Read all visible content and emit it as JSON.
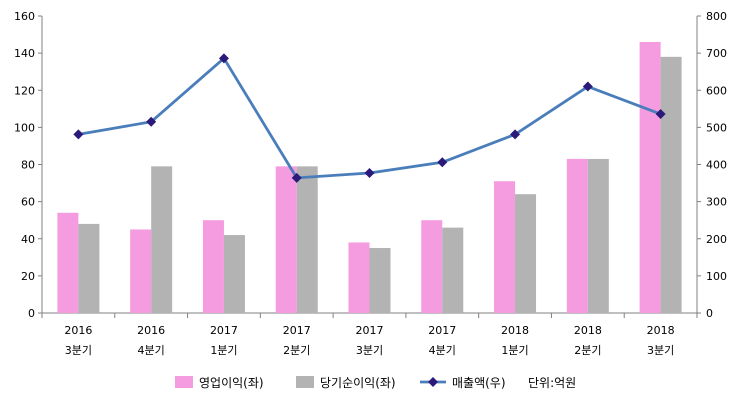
{
  "chart_data": {
    "type": "bar",
    "categories": [
      [
        "2016",
        "3분기"
      ],
      [
        "2016",
        "4분기"
      ],
      [
        "2017",
        "1분기"
      ],
      [
        "2017",
        "2분기"
      ],
      [
        "2017",
        "3분기"
      ],
      [
        "2017",
        "4분기"
      ],
      [
        "2018",
        "1분기"
      ],
      [
        "2018",
        "2분기"
      ],
      [
        "2018",
        "3분기"
      ]
    ],
    "series": [
      {
        "name": "영업이익(좌)",
        "type": "bar",
        "axis": "left",
        "color": "#f59be0",
        "values": [
          54,
          45,
          50,
          79,
          38,
          50,
          71,
          83,
          146
        ]
      },
      {
        "name": "당기순이익(좌)",
        "type": "bar",
        "axis": "left",
        "color": "#b3b3b3",
        "values": [
          48,
          79,
          42,
          79,
          35,
          46,
          64,
          83,
          138
        ]
      },
      {
        "name": "매출액(우)",
        "type": "line",
        "axis": "right",
        "color": "#4a7ebb",
        "marker_color": "#2b1a7a",
        "values": [
          481,
          515,
          686,
          364,
          377,
          406,
          481,
          610,
          536
        ]
      }
    ],
    "y_left": {
      "min": 0,
      "max": 160,
      "step": 20,
      "ticks": [
        "0",
        "20",
        "40",
        "60",
        "80",
        "100",
        "120",
        "140",
        "160"
      ]
    },
    "y_right": {
      "min": 0,
      "max": 800,
      "step": 100,
      "ticks": [
        "0",
        "100",
        "200",
        "300",
        "400",
        "500",
        "600",
        "700",
        "800"
      ]
    },
    "unit_label": "단위:억원",
    "grid": false,
    "legend_position": "bottom"
  }
}
